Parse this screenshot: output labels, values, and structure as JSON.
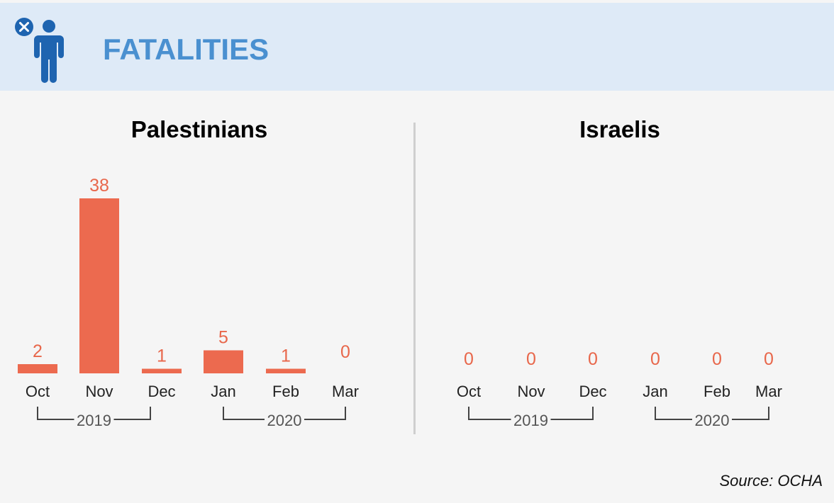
{
  "header": {
    "title": "FATALITIES",
    "icon": "person-close-icon",
    "accent_color": "#4a90d0",
    "background_color": "#deeaf7"
  },
  "source": "Source: OCHA",
  "bar_color": "#ec6a4f",
  "chart_data": [
    {
      "type": "bar",
      "title": "Palestinians",
      "categories": [
        "Oct",
        "Nov",
        "Dec",
        "Jan",
        "Feb",
        "Mar"
      ],
      "values": [
        2,
        38,
        1,
        5,
        1,
        0
      ],
      "groups": [
        {
          "label": "2019",
          "categories": [
            "Oct",
            "Nov",
            "Dec"
          ]
        },
        {
          "label": "2020",
          "categories": [
            "Jan",
            "Feb",
            "Mar"
          ]
        }
      ],
      "ylim": [
        0,
        38
      ],
      "grid": false,
      "xlabel": "",
      "ylabel": ""
    },
    {
      "type": "bar",
      "title": "Israelis",
      "categories": [
        "Oct",
        "Nov",
        "Dec",
        "Jan",
        "Feb",
        "Mar"
      ],
      "values": [
        0,
        0,
        0,
        0,
        0,
        0
      ],
      "groups": [
        {
          "label": "2019",
          "categories": [
            "Oct",
            "Nov",
            "Dec"
          ]
        },
        {
          "label": "2020",
          "categories": [
            "Jan",
            "Feb",
            "Mar"
          ]
        }
      ],
      "ylim": [
        0,
        38
      ],
      "grid": false,
      "xlabel": "",
      "ylabel": ""
    }
  ]
}
